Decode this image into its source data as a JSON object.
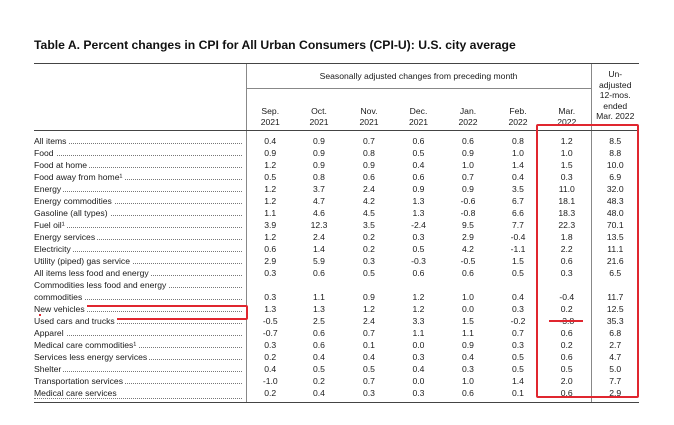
{
  "title": "Table A. Percent changes in CPI for All Urban Consumers (CPI-U): U.S. city average",
  "header": {
    "group_label": "Seasonally adjusted changes from preceding month",
    "unadjusted_label": [
      "Un-",
      "adjusted",
      "12-mos.",
      "ended",
      "Mar. 2022"
    ],
    "columns": [
      [
        "Sep.",
        "2021"
      ],
      [
        "Oct.",
        "2021"
      ],
      [
        "Nov.",
        "2021"
      ],
      [
        "Dec.",
        "2021"
      ],
      [
        "Jan.",
        "2022"
      ],
      [
        "Feb.",
        "2022"
      ],
      [
        "Mar.",
        "2022"
      ]
    ]
  },
  "rows": [
    {
      "label": "All items",
      "indent": 0,
      "values": [
        "0.4",
        "0.9",
        "0.7",
        "0.6",
        "0.6",
        "0.8",
        "1.2",
        "8.5"
      ]
    },
    {
      "label": "Food",
      "indent": 1,
      "values": [
        "0.9",
        "0.9",
        "0.8",
        "0.5",
        "0.9",
        "1.0",
        "1.0",
        "8.8"
      ]
    },
    {
      "label": "Food at home",
      "indent": 2,
      "values": [
        "1.2",
        "0.9",
        "0.9",
        "0.4",
        "1.0",
        "1.4",
        "1.5",
        "10.0"
      ]
    },
    {
      "label": "Food away from home¹",
      "indent": 2,
      "values": [
        "0.5",
        "0.8",
        "0.6",
        "0.6",
        "0.7",
        "0.4",
        "0.3",
        "6.9"
      ]
    },
    {
      "label": "Energy",
      "indent": 1,
      "values": [
        "1.2",
        "3.7",
        "2.4",
        "0.9",
        "0.9",
        "3.5",
        "11.0",
        "32.0"
      ]
    },
    {
      "label": "Energy commodities",
      "indent": 2,
      "values": [
        "1.2",
        "4.7",
        "4.2",
        "1.3",
        "-0.6",
        "6.7",
        "18.1",
        "48.3"
      ]
    },
    {
      "label": "Gasoline (all types)",
      "indent": 3,
      "values": [
        "1.1",
        "4.6",
        "4.5",
        "1.3",
        "-0.8",
        "6.6",
        "18.3",
        "48.0"
      ]
    },
    {
      "label": "Fuel oil¹",
      "indent": 3,
      "values": [
        "3.9",
        "12.3",
        "3.5",
        "-2.4",
        "9.5",
        "7.7",
        "22.3",
        "70.1"
      ]
    },
    {
      "label": "Energy services",
      "indent": 2,
      "values": [
        "1.2",
        "2.4",
        "0.2",
        "0.3",
        "2.9",
        "-0.4",
        "1.8",
        "13.5"
      ]
    },
    {
      "label": "Electricity",
      "indent": 3,
      "values": [
        "0.6",
        "1.4",
        "0.2",
        "0.5",
        "4.2",
        "-1.1",
        "2.2",
        "11.1"
      ]
    },
    {
      "label": "Utility (piped) gas service",
      "indent": 3,
      "values": [
        "2.9",
        "5.9",
        "0.3",
        "-0.3",
        "-0.5",
        "1.5",
        "0.6",
        "21.6"
      ]
    },
    {
      "label": "All items less food and energy",
      "indent": 1,
      "values": [
        "0.3",
        "0.6",
        "0.5",
        "0.6",
        "0.6",
        "0.5",
        "0.3",
        "6.5"
      ]
    },
    {
      "label": "Commodities less food and energy",
      "indent": 2,
      "values": [
        "",
        "",
        "",
        "",
        "",
        "",
        "",
        ""
      ]
    },
    {
      "label": "commodities",
      "indent": 3,
      "values": [
        "0.3",
        "1.1",
        "0.9",
        "1.2",
        "1.0",
        "0.4",
        "-0.4",
        "11.7"
      ]
    },
    {
      "label": "New vehicles",
      "indent": 3,
      "values": [
        "1.3",
        "1.3",
        "1.2",
        "1.2",
        "0.0",
        "0.3",
        "0.2",
        "12.5"
      ]
    },
    {
      "label": "Used cars and trucks",
      "indent": 3,
      "values": [
        "-0.5",
        "2.5",
        "2.4",
        "3.3",
        "1.5",
        "-0.2",
        "-3.8",
        "35.3"
      ]
    },
    {
      "label": "Apparel",
      "indent": 3,
      "values": [
        "-0.7",
        "0.6",
        "0.7",
        "1.1",
        "1.1",
        "0.7",
        "0.6",
        "6.8"
      ]
    },
    {
      "label": "Medical care commodities¹",
      "indent": 3,
      "values": [
        "0.3",
        "0.6",
        "0.1",
        "0.0",
        "0.9",
        "0.3",
        "0.2",
        "2.7"
      ]
    },
    {
      "label": "Services less energy services",
      "indent": 2,
      "values": [
        "0.2",
        "0.4",
        "0.4",
        "0.3",
        "0.4",
        "0.5",
        "0.6",
        "4.7"
      ]
    },
    {
      "label": "Shelter",
      "indent": 3,
      "values": [
        "0.4",
        "0.5",
        "0.5",
        "0.4",
        "0.3",
        "0.5",
        "0.5",
        "5.0"
      ]
    },
    {
      "label": "Transportation services",
      "indent": 3,
      "values": [
        "-1.0",
        "0.2",
        "0.7",
        "0.0",
        "1.0",
        "1.4",
        "2.0",
        "7.7"
      ]
    },
    {
      "label": "Medical care services",
      "indent": 3,
      "values": [
        "0.2",
        "0.4",
        "0.3",
        "0.3",
        "0.6",
        "0.1",
        "0.6",
        "2.9"
      ]
    }
  ],
  "highlight_color": "#e0262f"
}
